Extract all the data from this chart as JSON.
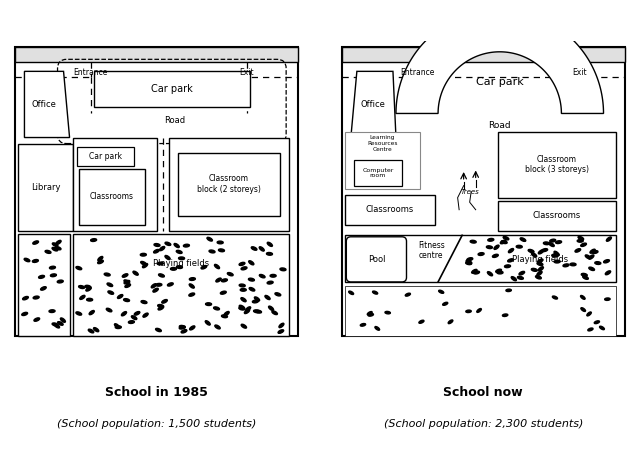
{
  "title_left": "School in 1985",
  "subtitle_left": "(School population: 1,500 students)",
  "title_right": "School now",
  "subtitle_right": "(School population: 2,300 students)",
  "bg_color": "#ffffff"
}
